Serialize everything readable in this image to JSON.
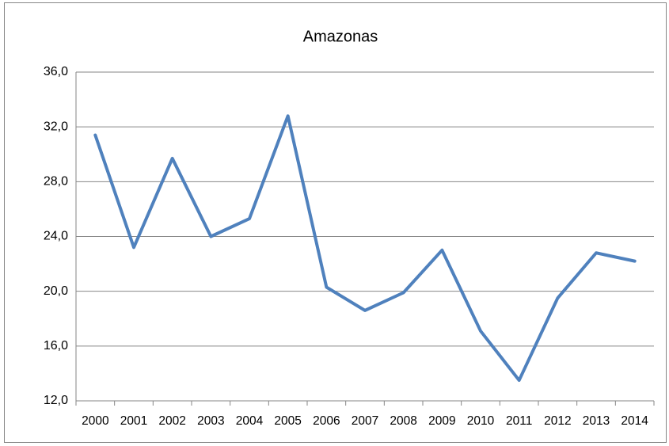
{
  "chart_data": {
    "type": "line",
    "title": "Amazonas",
    "categories": [
      "2000",
      "2001",
      "2002",
      "2003",
      "2004",
      "2005",
      "2006",
      "2007",
      "2008",
      "2009",
      "2010",
      "2011",
      "2012",
      "2013",
      "2014"
    ],
    "series": [
      {
        "name": "Amazonas",
        "color": "#4f81bd",
        "values": [
          31.4,
          23.2,
          29.7,
          24.0,
          25.3,
          32.8,
          20.3,
          18.6,
          19.9,
          23.0,
          17.1,
          13.5,
          19.5,
          22.8,
          22.2
        ]
      }
    ],
    "ylim": [
      12,
      36
    ],
    "yticks": [
      {
        "value": 12,
        "label": "12,0"
      },
      {
        "value": 16,
        "label": "16,0"
      },
      {
        "value": 20,
        "label": "20,0"
      },
      {
        "value": 24,
        "label": "24,0"
      },
      {
        "value": 28,
        "label": "28,0"
      },
      {
        "value": 32,
        "label": "32,0"
      },
      {
        "value": 36,
        "label": "36,0"
      }
    ],
    "grid": true
  }
}
